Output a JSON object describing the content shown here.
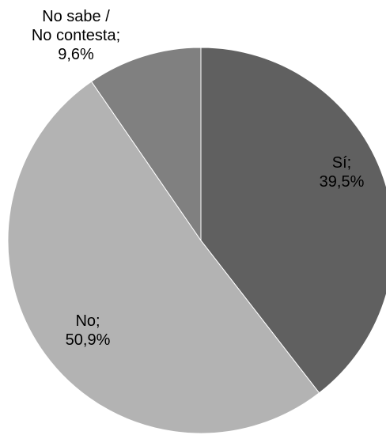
{
  "chart_data": {
    "type": "pie",
    "slices": [
      {
        "label_lines": [
          "Sí;",
          "39,5%"
        ],
        "value": 39.5,
        "color": "#606060"
      },
      {
        "label_lines": [
          "No;",
          "50,9%"
        ],
        "value": 50.9,
        "color": "#b3b3b3"
      },
      {
        "label_lines": [
          "No sabe /",
          "No contesta;",
          "9,6%"
        ],
        "value": 9.6,
        "color": "#808080"
      }
    ],
    "start_angle_deg": 0,
    "direction": "clockwise",
    "slice_border_color": "#ffffff"
  }
}
